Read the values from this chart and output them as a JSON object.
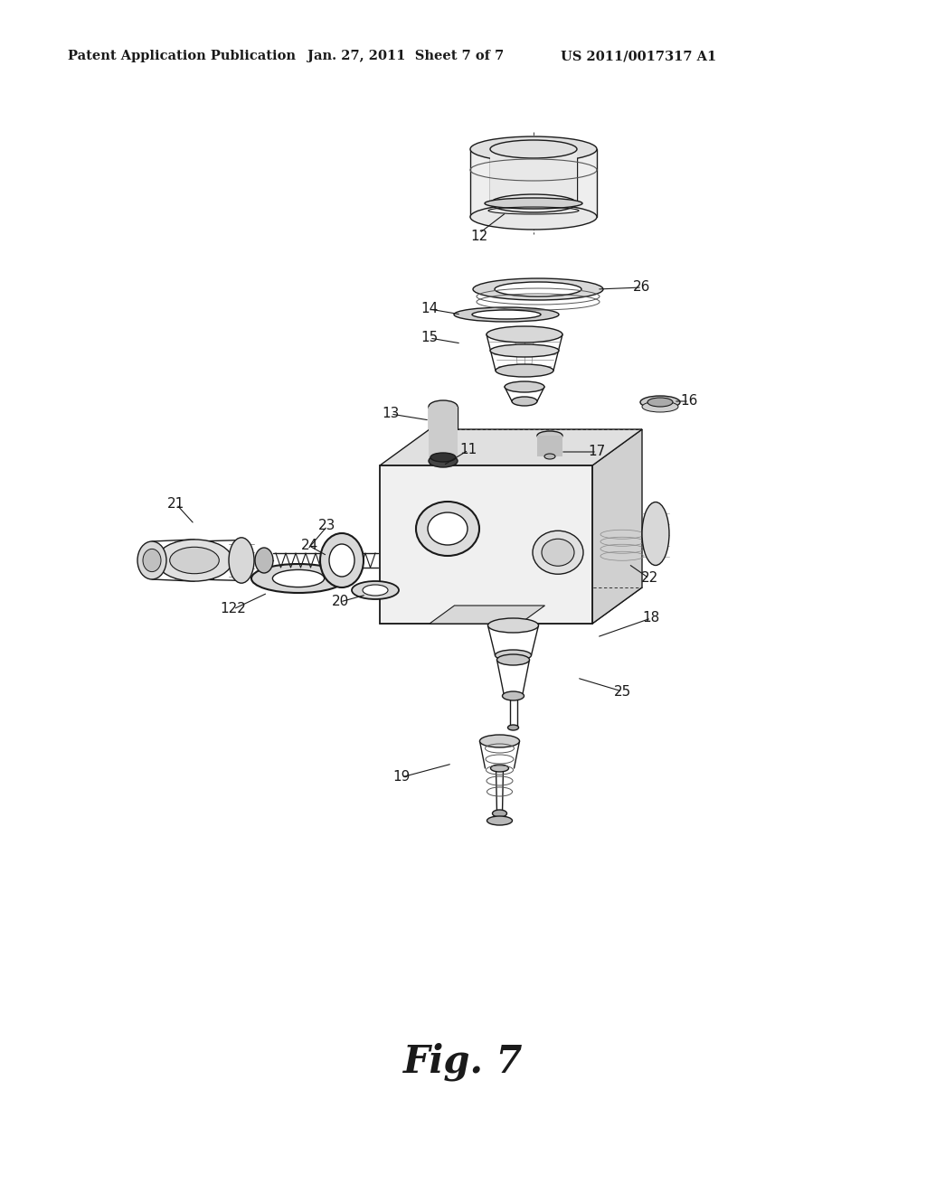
{
  "background_color": "#ffffff",
  "header_left": "Patent Application Publication",
  "header_center": "Jan. 27, 2011  Sheet 7 of 7",
  "header_right": "US 2011/0017317 A1",
  "figure_label": "Fig. 7",
  "header_fontsize": 10.5,
  "figure_label_fontsize": 30,
  "dark": "#1a1a1a",
  "mid": "#666666",
  "light": "#b0b0b0",
  "lw": 1.0
}
